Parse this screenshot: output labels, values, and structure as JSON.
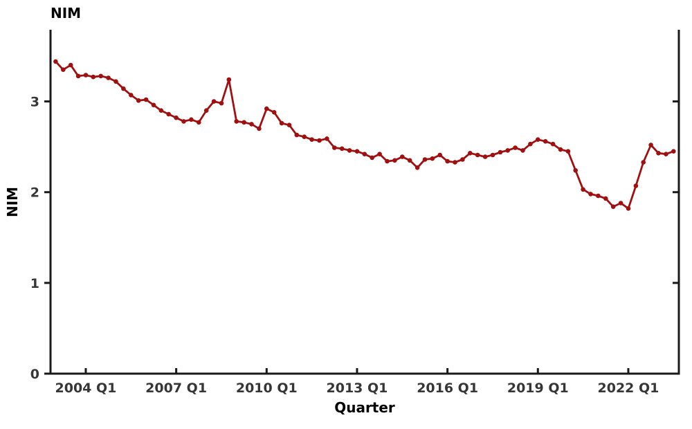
{
  "chart": {
    "title": "NIM",
    "xlabel": "Quarter",
    "ylabel": "NIM"
  },
  "chart_data": {
    "type": "line",
    "title": "NIM",
    "xlabel": "Quarter",
    "ylabel": "NIM",
    "grid": false,
    "legend": "none",
    "line_color": "#a01010",
    "marker": "circle",
    "ylim": [
      0,
      3.8
    ],
    "yticks": [
      0,
      1,
      2,
      3
    ],
    "xtick_labels": [
      "2004 Q1",
      "2007 Q1",
      "2010 Q1",
      "2013 Q1",
      "2016 Q1",
      "2019 Q1",
      "2022 Q1"
    ],
    "xtick_indices": [
      4,
      16,
      28,
      40,
      52,
      64,
      76
    ],
    "x": [
      "2003 Q1",
      "2003 Q2",
      "2003 Q3",
      "2003 Q4",
      "2004 Q1",
      "2004 Q2",
      "2004 Q3",
      "2004 Q4",
      "2005 Q1",
      "2005 Q2",
      "2005 Q3",
      "2005 Q4",
      "2006 Q1",
      "2006 Q2",
      "2006 Q3",
      "2006 Q4",
      "2007 Q1",
      "2007 Q2",
      "2007 Q3",
      "2007 Q4",
      "2008 Q1",
      "2008 Q2",
      "2008 Q3",
      "2008 Q4",
      "2009 Q1",
      "2009 Q2",
      "2009 Q3",
      "2009 Q4",
      "2010 Q1",
      "2010 Q2",
      "2010 Q3",
      "2010 Q4",
      "2011 Q1",
      "2011 Q2",
      "2011 Q3",
      "2011 Q4",
      "2012 Q1",
      "2012 Q2",
      "2012 Q3",
      "2012 Q4",
      "2013 Q1",
      "2013 Q2",
      "2013 Q3",
      "2013 Q4",
      "2014 Q1",
      "2014 Q2",
      "2014 Q3",
      "2014 Q4",
      "2015 Q1",
      "2015 Q2",
      "2015 Q3",
      "2015 Q4",
      "2016 Q1",
      "2016 Q2",
      "2016 Q3",
      "2016 Q4",
      "2017 Q1",
      "2017 Q2",
      "2017 Q3",
      "2017 Q4",
      "2018 Q1",
      "2018 Q2",
      "2018 Q3",
      "2018 Q4",
      "2019 Q1",
      "2019 Q2",
      "2019 Q3",
      "2019 Q4",
      "2020 Q1",
      "2020 Q2",
      "2020 Q3",
      "2020 Q4",
      "2021 Q1",
      "2021 Q2",
      "2021 Q3",
      "2021 Q4",
      "2022 Q1",
      "2022 Q2",
      "2022 Q3",
      "2022 Q4",
      "2023 Q1",
      "2023 Q2",
      "2023 Q3"
    ],
    "values": [
      3.44,
      3.35,
      3.4,
      3.28,
      3.29,
      3.27,
      3.28,
      3.26,
      3.22,
      3.14,
      3.07,
      3.01,
      3.02,
      2.96,
      2.9,
      2.86,
      2.82,
      2.78,
      2.8,
      2.77,
      2.9,
      3.0,
      2.98,
      3.24,
      2.78,
      2.77,
      2.75,
      2.7,
      2.92,
      2.88,
      2.76,
      2.74,
      2.63,
      2.61,
      2.58,
      2.57,
      2.59,
      2.49,
      2.48,
      2.46,
      2.45,
      2.42,
      2.38,
      2.42,
      2.34,
      2.35,
      2.39,
      2.35,
      2.27,
      2.36,
      2.37,
      2.41,
      2.34,
      2.33,
      2.36,
      2.43,
      2.41,
      2.39,
      2.41,
      2.44,
      2.46,
      2.49,
      2.46,
      2.53,
      2.58,
      2.56,
      2.53,
      2.47,
      2.45,
      2.24,
      2.03,
      1.98,
      1.96,
      1.93,
      1.84,
      1.88,
      1.82,
      2.07,
      2.33,
      2.52,
      2.43,
      2.42,
      2.45
    ]
  }
}
